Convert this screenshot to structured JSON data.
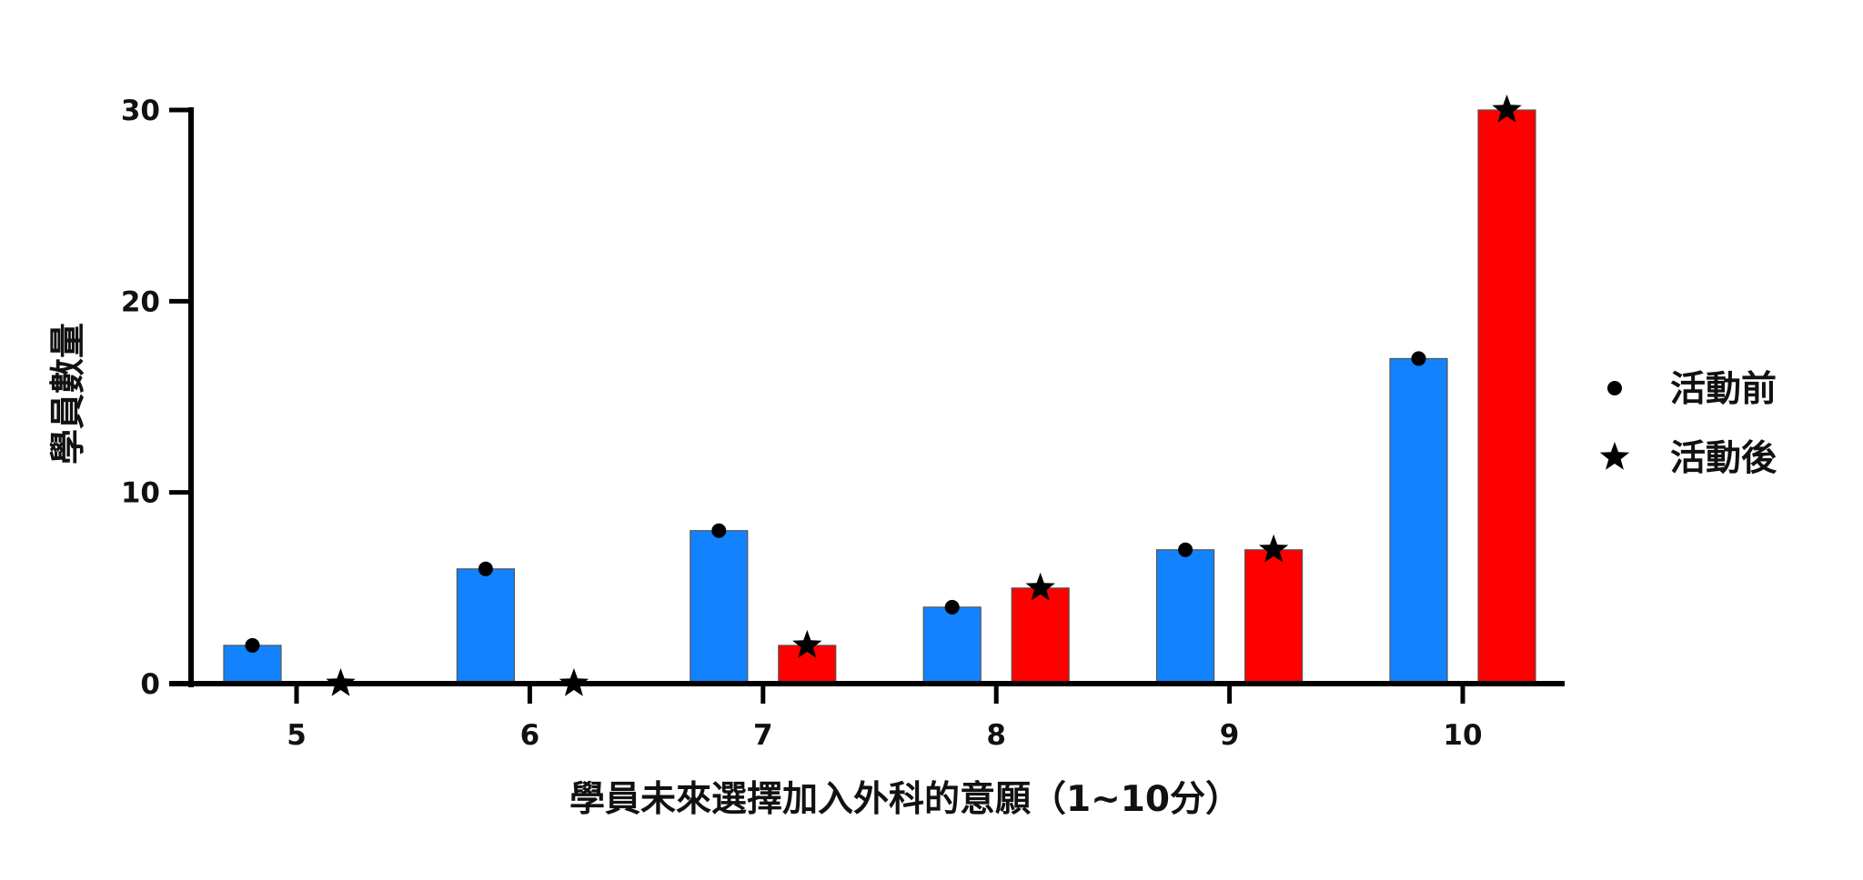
{
  "chart_data": {
    "type": "bar",
    "title": "",
    "xlabel": "學員未來選擇加入外科的意願（1~10分）",
    "ylabel": "學員數量",
    "categories": [
      "5",
      "6",
      "7",
      "8",
      "9",
      "10"
    ],
    "ylim": [
      0,
      30
    ],
    "yticks": [
      "0",
      "10",
      "20",
      "30"
    ],
    "grid": false,
    "legend_position": "right",
    "series": [
      {
        "name": "活動前",
        "marker": "circle",
        "color": "#1282ff",
        "values": [
          2,
          6,
          8,
          4,
          7,
          17
        ]
      },
      {
        "name": "活動後",
        "marker": "star",
        "color": "#fe0000",
        "values": [
          0,
          0,
          2,
          5,
          7,
          30
        ]
      }
    ]
  }
}
